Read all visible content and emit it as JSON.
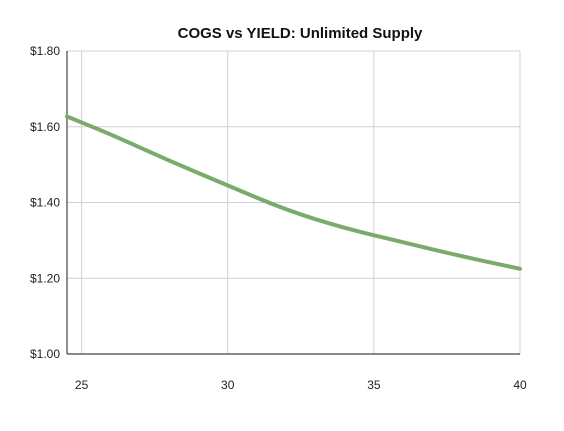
{
  "chart_data": {
    "type": "line",
    "title": "COGS vs YIELD: Unlimited Supply",
    "xlabel": "",
    "ylabel": "",
    "xlim": [
      24.5,
      40
    ],
    "ylim": [
      1.0,
      1.8
    ],
    "x_ticks": [
      25,
      30,
      35,
      40
    ],
    "x_tick_labels": [
      "25",
      "30",
      "35",
      "40"
    ],
    "y_ticks": [
      1.0,
      1.2,
      1.4,
      1.6,
      1.8
    ],
    "y_tick_labels": [
      "$1.00",
      "$1.20",
      "$1.40",
      "$1.60",
      "$1.80"
    ],
    "grid": true,
    "legend": "none",
    "series": [
      {
        "color": "#7aab6c",
        "x": [
          24.5,
          26,
          28,
          30,
          32,
          34,
          36,
          38,
          40
        ],
        "y": [
          1.627,
          1.58,
          1.51,
          1.445,
          1.38,
          1.332,
          1.295,
          1.258,
          1.225
        ]
      }
    ]
  }
}
